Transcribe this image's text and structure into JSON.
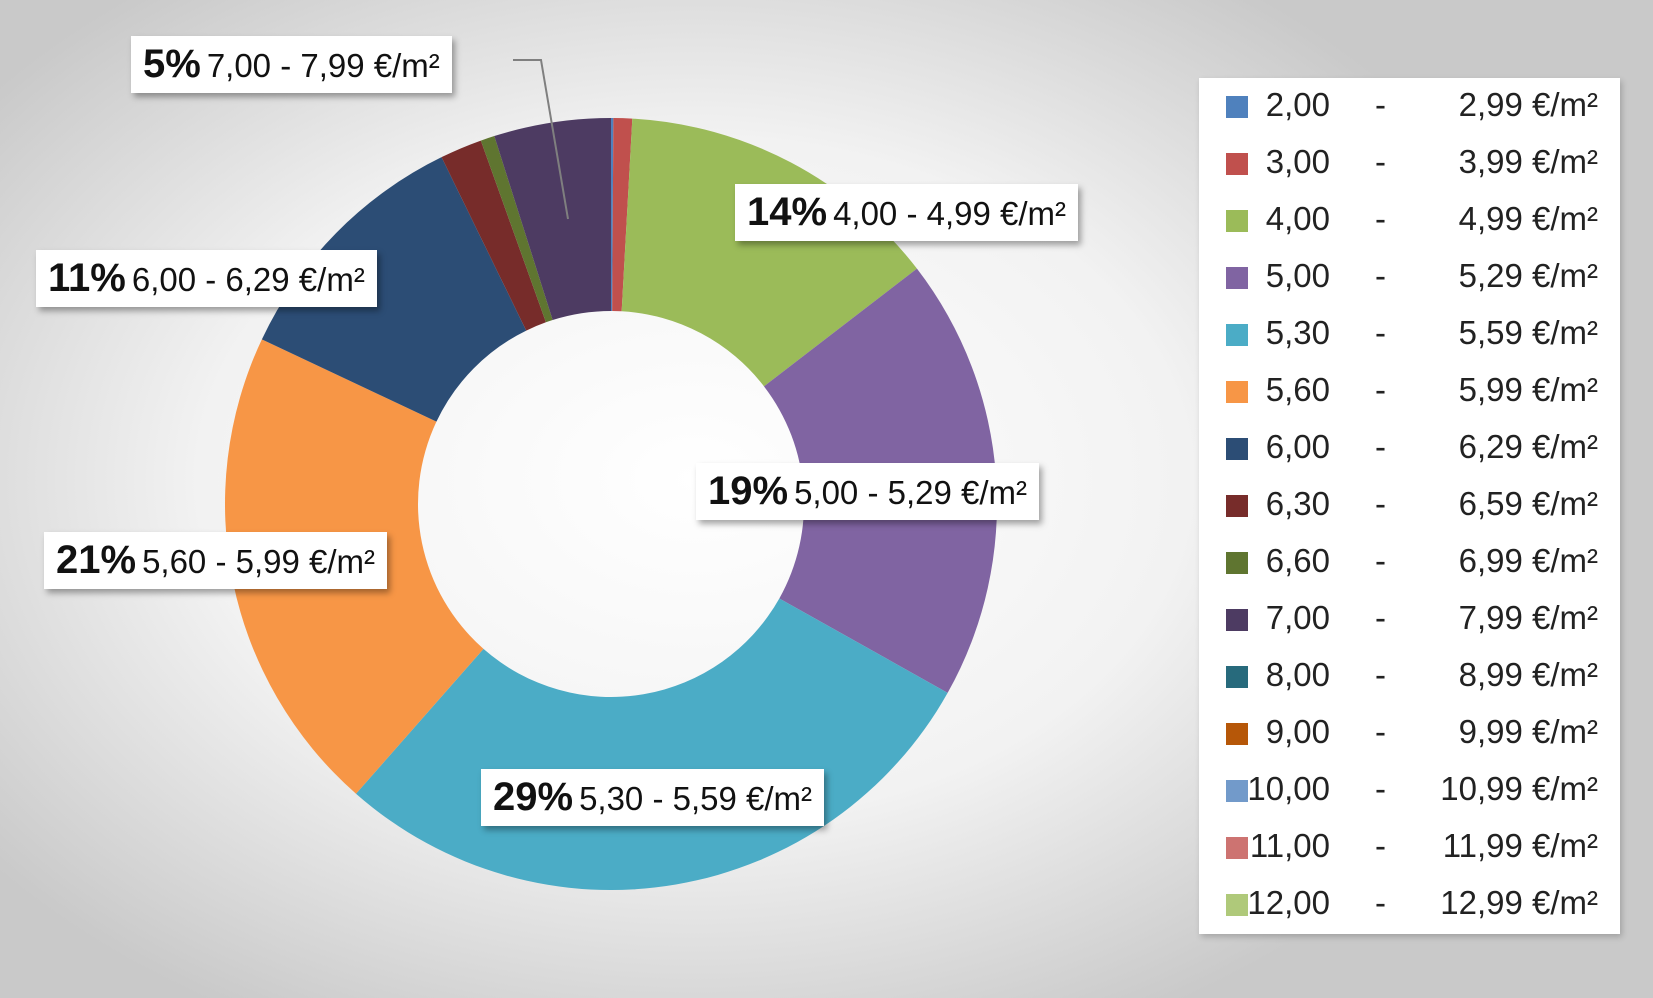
{
  "chart_data": {
    "type": "pie",
    "categories": [
      "2,00 - 2,99 €/m²",
      "3,00 - 3,99 €/m²",
      "4,00 - 4,99 €/m²",
      "5,00 - 5,29 €/m²",
      "5,30 - 5,59 €/m²",
      "5,60 - 5,99 €/m²",
      "6,00 - 6,29 €/m²",
      "6,30 - 6,59 €/m²",
      "6,60 - 6,99 €/m²",
      "7,00 - 7,99 €/m²",
      "8,00 - 8,99 €/m²",
      "9,00 - 9,99 €/m²",
      "10,00 - 10,99 €/m²",
      "11,00 - 11,99 €/m²",
      "12,00 - 12,99 €/m²"
    ],
    "values": [
      0.1,
      0.8,
      14,
      19,
      29,
      21,
      11,
      1.8,
      0.6,
      5,
      0,
      0,
      0,
      0,
      0
    ],
    "colors": [
      "#4f81bd",
      "#c0504d",
      "#9bbb59",
      "#8064a2",
      "#4bacc6",
      "#f79646",
      "#2c4d75",
      "#772c2a",
      "#5f7530",
      "#4d3b62",
      "#276a7c",
      "#b65708",
      "#729aca",
      "#cd7371",
      "#afc97a"
    ],
    "donut": true,
    "legend_position": "right",
    "data_labels": [
      {
        "category": "7,00 - 7,99 €/m²",
        "pct": "5%",
        "range": "7,00 - 7,99 €/m²"
      },
      {
        "category": "4,00 - 4,99 €/m²",
        "pct": "14%",
        "range": "4,00 - 4,99 €/m²"
      },
      {
        "category": "6,00 - 6,29 €/m²",
        "pct": "11%",
        "range": "6,00 - 6,29 €/m²"
      },
      {
        "category": "5,00 - 5,29 €/m²",
        "pct": "19%",
        "range": "5,00 - 5,29 €/m²"
      },
      {
        "category": "5,60 - 5,99 €/m²",
        "pct": "21%",
        "range": "5,60 - 5,99 €/m²"
      },
      {
        "category": "5,30 - 5,59 €/m²",
        "pct": "29%",
        "range": "5,30 - 5,59 €/m²"
      }
    ],
    "legend": [
      {
        "lo": "2,00",
        "dash": "-",
        "hi": "2,99 €/m²"
      },
      {
        "lo": "3,00",
        "dash": "-",
        "hi": "3,99 €/m²"
      },
      {
        "lo": "4,00",
        "dash": "-",
        "hi": "4,99 €/m²"
      },
      {
        "lo": "5,00",
        "dash": "-",
        "hi": "5,29 €/m²"
      },
      {
        "lo": "5,30",
        "dash": "-",
        "hi": "5,59 €/m²"
      },
      {
        "lo": "5,60",
        "dash": "-",
        "hi": "5,99 €/m²"
      },
      {
        "lo": "6,00",
        "dash": "-",
        "hi": "6,29 €/m²"
      },
      {
        "lo": "6,30",
        "dash": "-",
        "hi": "6,59 €/m²"
      },
      {
        "lo": "6,60",
        "dash": "-",
        "hi": "6,99 €/m²"
      },
      {
        "lo": "7,00",
        "dash": "-",
        "hi": "7,99 €/m²"
      },
      {
        "lo": "8,00",
        "dash": "-",
        "hi": "8,99 €/m²"
      },
      {
        "lo": "9,00",
        "dash": "-",
        "hi": "9,99 €/m²"
      },
      {
        "lo": "10,00",
        "dash": "-",
        "hi": "10,99 €/m²"
      },
      {
        "lo": "11,00",
        "dash": "-",
        "hi": "11,99 €/m²"
      },
      {
        "lo": "12,00",
        "dash": "-",
        "hi": "12,99 €/m²"
      }
    ]
  }
}
